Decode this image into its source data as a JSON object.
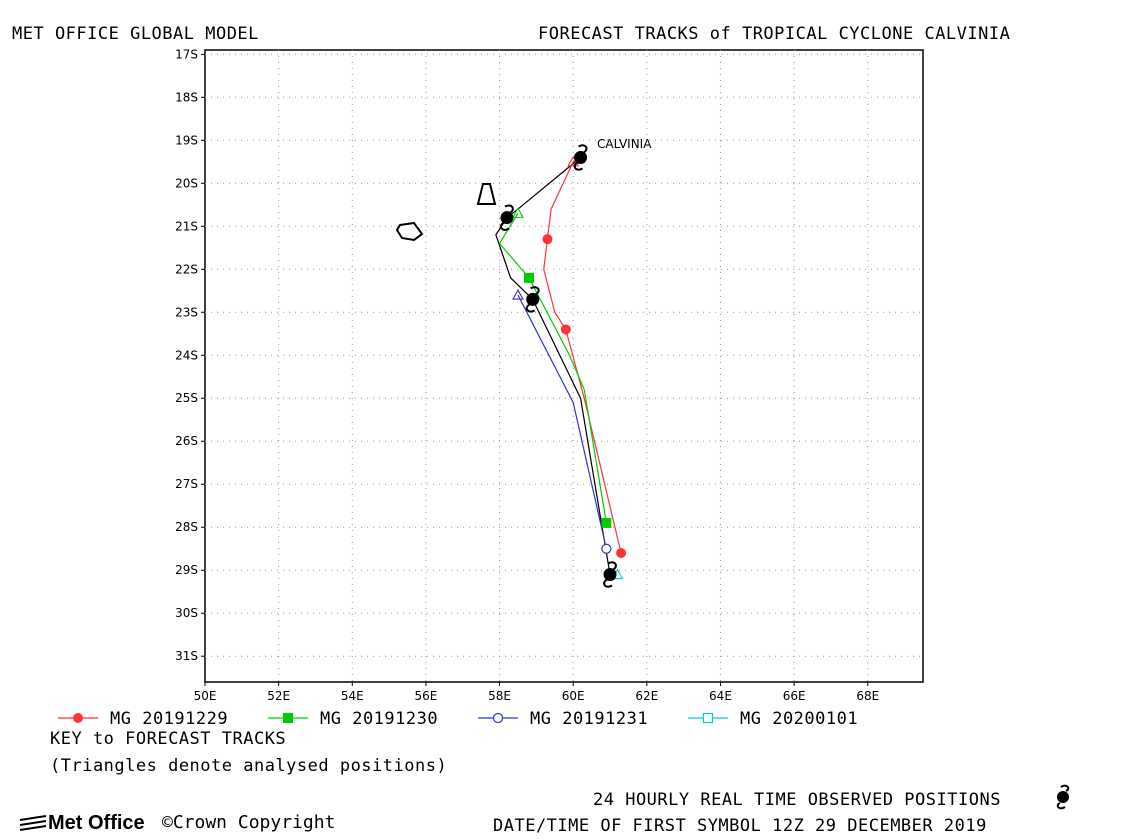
{
  "header": {
    "left_title": "MET OFFICE GLOBAL MODEL",
    "right_title": "FORECAST TRACKS of TROPICAL CYCLONE CALVINIA"
  },
  "map": {
    "lon_range": [
      50,
      69.5
    ],
    "lat_range": [
      -31.6,
      -16.9
    ],
    "x_ticks": [
      "50E",
      "52E",
      "54E",
      "56E",
      "58E",
      "60E",
      "62E",
      "64E",
      "66E",
      "68E"
    ],
    "y_ticks": [
      "17S",
      "18S",
      "19S",
      "20S",
      "21S",
      "22S",
      "23S",
      "24S",
      "25S",
      "26S",
      "27S",
      "28S",
      "29S",
      "30S",
      "31S"
    ],
    "grid": "dotted",
    "storm_label": "CALVINIA"
  },
  "chart_data": {
    "type": "map-tracks",
    "observed_track": {
      "name": "24 HOURLY REAL TIME OBSERVED POSITIONS",
      "color": "#000000",
      "line": [
        [
          60.2,
          -19.4
        ],
        [
          58.5,
          -20.6
        ],
        [
          58.2,
          -20.8
        ],
        [
          57.9,
          -21.2
        ],
        [
          58.3,
          -22.2
        ],
        [
          58.9,
          -22.7
        ],
        [
          60.2,
          -25.0
        ],
        [
          61.0,
          -29.1
        ]
      ],
      "symbols": [
        [
          60.2,
          -19.4
        ],
        [
          58.2,
          -20.8
        ],
        [
          58.9,
          -22.7
        ],
        [
          61.0,
          -29.1
        ]
      ]
    },
    "series": [
      {
        "name": "MG 20191229",
        "color": "#ff3333",
        "marker": "filled-circle",
        "analysed": [
          60.0,
          -19.5
        ],
        "line": [
          [
            60.3,
            -19.3
          ],
          [
            60.0,
            -19.5
          ],
          [
            59.4,
            -20.6
          ],
          [
            59.3,
            -21.3
          ],
          [
            59.2,
            -22.0
          ],
          [
            59.5,
            -23.0
          ],
          [
            59.8,
            -23.4
          ],
          [
            60.3,
            -25.0
          ],
          [
            61.3,
            -28.6
          ]
        ],
        "points": [
          [
            59.3,
            -21.3
          ],
          [
            59.8,
            -23.4
          ],
          [
            61.3,
            -28.6
          ]
        ]
      },
      {
        "name": "MG 20191230",
        "color": "#00cc00",
        "marker": "filled-square",
        "analysed": [
          58.5,
          -20.7
        ],
        "line": [
          [
            58.5,
            -20.7
          ],
          [
            58.0,
            -21.4
          ],
          [
            58.8,
            -22.2
          ],
          [
            59.9,
            -24.0
          ],
          [
            60.3,
            -24.8
          ],
          [
            60.9,
            -27.9
          ]
        ],
        "points": [
          [
            58.8,
            -22.2
          ],
          [
            60.9,
            -27.9
          ]
        ]
      },
      {
        "name": "MG 20191231",
        "color": "#3333cc",
        "marker": "open-circle",
        "analysed": [
          58.5,
          -22.6
        ],
        "line": [
          [
            58.5,
            -22.6
          ],
          [
            60.0,
            -25.1
          ],
          [
            60.9,
            -28.5
          ]
        ],
        "points": [
          [
            60.9,
            -28.5
          ]
        ]
      },
      {
        "name": "MG 20200101",
        "color": "#00cccc",
        "marker": "open-square",
        "analysed": [
          61.2,
          -29.1
        ],
        "line": [
          [
            61.2,
            -29.1
          ]
        ],
        "points": []
      }
    ]
  },
  "legend": {
    "items": [
      {
        "label": "MG 20191229",
        "color": "#ff3333",
        "marker": "filled-circle"
      },
      {
        "label": "MG 20191230",
        "color": "#00cc00",
        "marker": "filled-square"
      },
      {
        "label": "MG 20191231",
        "color": "#3333cc",
        "marker": "open-circle"
      },
      {
        "label": "MG 20200101",
        "color": "#00cccc",
        "marker": "open-square"
      }
    ],
    "key_title": "KEY to FORECAST TRACKS",
    "key_note": "(Triangles denote analysed positions)"
  },
  "footer": {
    "observed_label": "24 HOURLY REAL TIME OBSERVED POSITIONS",
    "datetime_label": "DATE/TIME OF FIRST SYMBOL 12Z 29 DECEMBER 2019",
    "logo_text": "Met Office",
    "copyright": "©Crown Copyright"
  }
}
